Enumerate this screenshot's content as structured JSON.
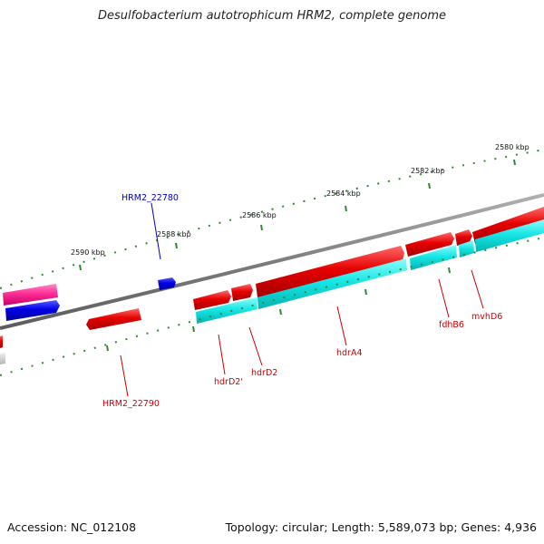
{
  "title": "Desulfobacterium autotrophicum HRM2, complete genome",
  "footer": {
    "accession": "Accession: NC_012108",
    "topology": "Topology: circular; Length: 5,589,073 bp; Genes: 4,936"
  },
  "colors": {
    "backbone": "#8a8a8a",
    "ticks": "#2e8b2e",
    "cds_forward": "#e60000",
    "cds_reverse": "#0000e6",
    "rna": "#ff3d9a",
    "feature": "#19e6e6",
    "label_red": "#cc0000",
    "label_blue": "#0000cc"
  },
  "scale_labels": [
    "2590 kbp",
    "2588 kbp",
    "2586 kbp",
    "2584 kbp",
    "2582 kbp",
    "2580 kbp"
  ],
  "gene_labels": [
    {
      "text": "HRM2_22780",
      "color": "label_blue"
    },
    {
      "text": "HRM2_22790",
      "color": "label_red"
    },
    {
      "text": "hdrD2'",
      "color": "label_red"
    },
    {
      "text": "hdrD2",
      "color": "label_red"
    },
    {
      "text": "hdrA4",
      "color": "label_red"
    },
    {
      "text": "fdhB6",
      "color": "label_red"
    },
    {
      "text": "mvhD6",
      "color": "label_red"
    }
  ]
}
